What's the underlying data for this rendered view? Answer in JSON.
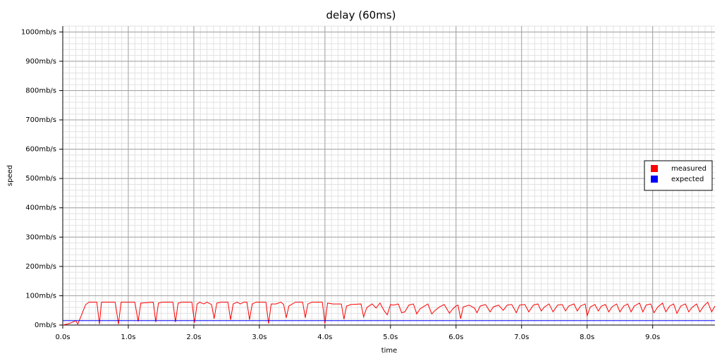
{
  "chart_data": {
    "type": "line",
    "title": "delay (60ms)",
    "xlabel": "time",
    "ylabel": "speed",
    "xlim": [
      0,
      9.95
    ],
    "ylim": [
      0,
      1020
    ],
    "xticks": [
      {
        "value": 0,
        "label": "0.0s"
      },
      {
        "value": 1,
        "label": "1.0s"
      },
      {
        "value": 2,
        "label": "2.0s"
      },
      {
        "value": 3,
        "label": "3.0s"
      },
      {
        "value": 4,
        "label": "4.0s"
      },
      {
        "value": 5,
        "label": "5.0s"
      },
      {
        "value": 6,
        "label": "6.0s"
      },
      {
        "value": 7,
        "label": "7.0s"
      },
      {
        "value": 8,
        "label": "8.0s"
      },
      {
        "value": 9,
        "label": "9.0s"
      }
    ],
    "yticks": [
      {
        "value": 0,
        "label": "0mb/s"
      },
      {
        "value": 100,
        "label": "100mb/s"
      },
      {
        "value": 200,
        "label": "200mb/s"
      },
      {
        "value": 300,
        "label": "300mb/s"
      },
      {
        "value": 400,
        "label": "400mb/s"
      },
      {
        "value": 500,
        "label": "500mb/s"
      },
      {
        "value": 600,
        "label": "600mb/s"
      },
      {
        "value": 700,
        "label": "700mb/s"
      },
      {
        "value": 800,
        "label": "800mb/s"
      },
      {
        "value": 900,
        "label": "900mb/s"
      },
      {
        "value": 1000,
        "label": "1000mb/s"
      }
    ],
    "grid": true,
    "minor_grid": true,
    "legend_position": "right",
    "series": [
      {
        "name": "measured",
        "color": "#ff0000",
        "x": [
          0,
          0.1,
          0.2,
          0.23,
          0.35,
          0.4,
          0.52,
          0.56,
          0.59,
          0.8,
          0.85,
          0.89,
          1.1,
          1.15,
          1.19,
          1.38,
          1.42,
          1.46,
          1.52,
          1.68,
          1.72,
          1.76,
          1.82,
          1.97,
          2.01,
          2.05,
          2.09,
          2.15,
          2.2,
          2.27,
          2.31,
          2.35,
          2.42,
          2.52,
          2.56,
          2.6,
          2.66,
          2.71,
          2.76,
          2.81,
          2.85,
          2.89,
          2.95,
          3.1,
          3.14,
          3.18,
          3.25,
          3.33,
          3.37,
          3.41,
          3.45,
          3.55,
          3.66,
          3.7,
          3.74,
          3.8,
          3.96,
          4.0,
          4.04,
          4.12,
          4.25,
          4.29,
          4.33,
          4.4,
          4.55,
          4.59,
          4.64,
          4.72,
          4.78,
          4.84,
          4.9,
          4.95,
          5.0,
          5.05,
          5.12,
          5.17,
          5.22,
          5.28,
          5.35,
          5.4,
          5.45,
          5.5,
          5.57,
          5.63,
          5.68,
          5.75,
          5.82,
          5.9,
          5.95,
          6.0,
          6.03,
          6.07,
          6.11,
          6.2,
          6.28,
          6.32,
          6.37,
          6.45,
          6.52,
          6.57,
          6.65,
          6.72,
          6.78,
          6.85,
          6.92,
          6.97,
          7.05,
          7.11,
          7.18,
          7.25,
          7.3,
          7.35,
          7.42,
          7.48,
          7.55,
          7.62,
          7.67,
          7.72,
          7.8,
          7.85,
          7.9,
          7.97,
          8.0,
          8.05,
          8.12,
          8.17,
          8.22,
          8.28,
          8.33,
          8.38,
          8.45,
          8.5,
          8.56,
          8.62,
          8.67,
          8.72,
          8.8,
          8.85,
          8.9,
          8.97,
          9.02,
          9.08,
          9.15,
          9.2,
          9.26,
          9.32,
          9.37,
          9.43,
          9.5,
          9.55,
          9.6,
          9.67,
          9.72,
          9.78,
          9.84,
          9.9,
          9.95
        ],
        "values": [
          0,
          5,
          15,
          3,
          70,
          78,
          78,
          3,
          78,
          78,
          3,
          78,
          78,
          12,
          75,
          78,
          10,
          75,
          78,
          78,
          10,
          75,
          78,
          78,
          8,
          72,
          78,
          72,
          78,
          70,
          22,
          75,
          78,
          78,
          18,
          72,
          78,
          72,
          78,
          78,
          18,
          72,
          78,
          78,
          5,
          72,
          72,
          78,
          70,
          25,
          65,
          78,
          78,
          25,
          72,
          78,
          78,
          5,
          75,
          72,
          72,
          20,
          65,
          70,
          72,
          28,
          60,
          72,
          58,
          75,
          50,
          35,
          70,
          68,
          72,
          42,
          45,
          68,
          72,
          38,
          55,
          62,
          72,
          38,
          50,
          62,
          70,
          40,
          55,
          65,
          68,
          22,
          62,
          68,
          58,
          42,
          65,
          70,
          45,
          62,
          68,
          50,
          68,
          70,
          42,
          68,
          70,
          45,
          68,
          72,
          48,
          62,
          72,
          45,
          68,
          70,
          48,
          65,
          72,
          48,
          65,
          72,
          32,
          62,
          70,
          48,
          65,
          70,
          45,
          62,
          72,
          45,
          65,
          72,
          45,
          65,
          75,
          45,
          68,
          72,
          42,
          62,
          75,
          45,
          65,
          72,
          40,
          65,
          72,
          45,
          60,
          72,
          45,
          65,
          78,
          45,
          65
        ]
      },
      {
        "name": "expected",
        "color": "#0000ff",
        "x": [
          0,
          9.95
        ],
        "values": [
          15,
          15
        ]
      }
    ]
  }
}
